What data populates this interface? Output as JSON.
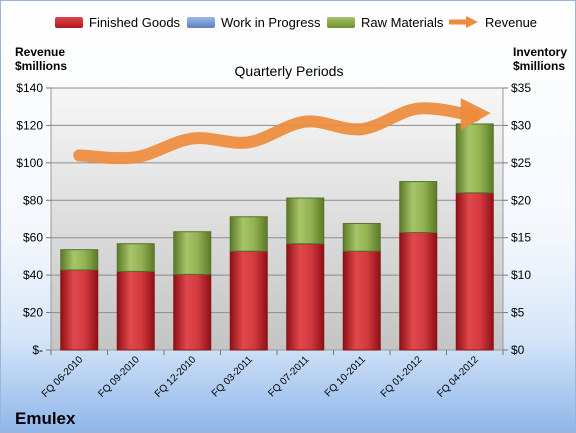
{
  "chart_data": {
    "type": "bar",
    "title": "Quarterly Periods",
    "ylabel_left": "Revenue $millions",
    "ylabel_right": "Inventory $millions",
    "categories": [
      "FQ 06-2010",
      "FQ 09-2010",
      "FQ 12-2010",
      "FQ 03-2011",
      "FQ 07-2011",
      "FQ 10-2011",
      "FQ 01-2012",
      "FQ 04-2012"
    ],
    "inventory_series": [
      {
        "name": "Finished Goods",
        "color": "#c0282d",
        "values": [
          10.7,
          10.5,
          10.1,
          13.2,
          14.2,
          13.2,
          15.7,
          21.0
        ]
      },
      {
        "name": "Work in Progress",
        "color": "#6f93cf",
        "values": [
          0,
          0,
          0,
          0,
          0,
          0,
          0,
          0
        ]
      },
      {
        "name": "Raw Materials",
        "color": "#8fb04b",
        "values": [
          2.7,
          3.7,
          5.7,
          4.6,
          6.1,
          3.7,
          6.8,
          9.2
        ]
      }
    ],
    "revenue_series": {
      "name": "Revenue",
      "color": "#ed8b3c",
      "values": [
        104,
        103,
        113,
        111,
        122,
        118,
        129,
        125
      ]
    },
    "ylim_left": [
      0,
      140
    ],
    "ylim_right": [
      0,
      35
    ],
    "left_ticks": [
      "$-",
      "$20",
      "$40",
      "$60",
      "$80",
      "$100",
      "$120",
      "$140"
    ],
    "right_ticks": [
      "$0",
      "$5",
      "$10",
      "$15",
      "$20",
      "$25",
      "$30",
      "$35"
    ],
    "grid": true,
    "legend_position": "top"
  },
  "legend": {
    "finished_goods": "Finished Goods",
    "work_in_progress": "Work in Progress",
    "raw_materials": "Raw Materials",
    "revenue": "Revenue"
  },
  "axis_titles": {
    "left_line1": "Revenue",
    "left_line2": "$millions",
    "right_line1": "Inventory",
    "right_line2": "$millions"
  },
  "company": "Emulex"
}
